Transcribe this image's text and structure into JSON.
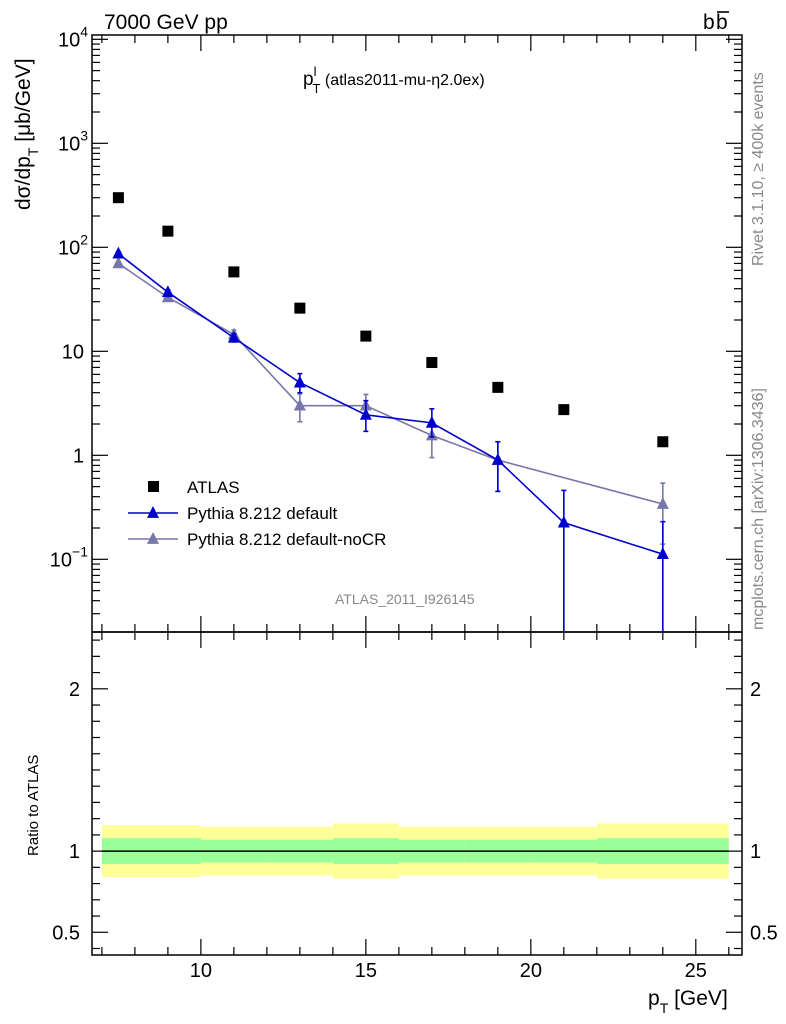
{
  "header": {
    "left": "7000 GeV pp",
    "right_b": "b",
    "right_bbar": "b"
  },
  "side_labels": {
    "rivet": "Rivet 3.1.10, ≥ 400k events",
    "mcplots": "mcplots.cern.ch [arXiv:1306.3436]"
  },
  "watermark": "ATLAS_2011_I926145",
  "plot_title": {
    "main": "p",
    "sup": "l",
    "sub": "T",
    "rest": " (atlas2011-mu-η2.0ex)"
  },
  "axes": {
    "ylabel": {
      "main": "dσ/dp",
      "sub": "T",
      "rest": " [μb/GeV]"
    },
    "xlabel": {
      "main": "p",
      "sub": "T",
      "rest": " [GeV]"
    },
    "ratio_ylabel": "Ratio to ATLAS"
  },
  "chart_data": [
    {
      "type": "scatter",
      "panel": "main",
      "yscale": "log",
      "xlim": [
        6.7,
        26.4
      ],
      "ylim": [
        0.02,
        11000
      ],
      "x_ticks": [
        10,
        15,
        20,
        25
      ],
      "y_ticks": [
        {
          "value": 0.1,
          "label": "10",
          "exp": "−1"
        },
        {
          "value": 1,
          "label": "1",
          "exp": ""
        },
        {
          "value": 10,
          "label": "10",
          "exp": ""
        },
        {
          "value": 100,
          "label": "10",
          "exp": "2"
        },
        {
          "value": 1000,
          "label": "10",
          "exp": "3"
        },
        {
          "value": 10000,
          "label": "10",
          "exp": "4"
        }
      ],
      "legend_position": "lower-left",
      "series": [
        {
          "name": "ATLAS",
          "color": "#000000",
          "marker": "square",
          "x": [
            7.5,
            9,
            11,
            13,
            15,
            17,
            19,
            21,
            24
          ],
          "y": [
            300,
            143,
            58,
            26,
            14,
            7.8,
            4.5,
            2.75,
            1.35
          ]
        },
        {
          "name": "Pythia 8.212 default",
          "color": "#0000cc",
          "marker": "triangle",
          "x": [
            7.5,
            9,
            11,
            13,
            15,
            17,
            19,
            21,
            24
          ],
          "y": [
            87,
            37,
            13.5,
            5,
            2.45,
            2.05,
            0.9,
            0.225,
            0.112
          ],
          "err_lo": [
            4,
            2,
            1.2,
            1,
            0.75,
            0.55,
            0.45,
            0.215,
            0.108
          ],
          "err_hi": [
            4,
            2,
            1.2,
            1.1,
            0.9,
            0.75,
            0.45,
            0.235,
            0.118
          ]
        },
        {
          "name": "Pythia 8.212 default-noCR",
          "color": "#7777aa",
          "marker": "triangle",
          "x": [
            7.5,
            9,
            11,
            13,
            15,
            17,
            19,
            24
          ],
          "y": [
            70,
            33,
            14.5,
            3,
            3,
            1.55,
            0.9,
            0.34
          ],
          "err_lo": [
            3,
            1.5,
            1.5,
            0.9,
            0.75,
            0.6,
            0.45,
            0.2
          ],
          "err_hi": [
            3,
            1.5,
            1.5,
            0.9,
            0.85,
            0.6,
            0.45,
            0.2
          ]
        }
      ]
    },
    {
      "type": "area",
      "panel": "ratio",
      "xlim": [
        6.7,
        26.4
      ],
      "ylim": [
        0.36,
        2.35
      ],
      "x_ticks": [
        10,
        15,
        20,
        25
      ],
      "y_ticks": [
        0.5,
        1,
        2
      ],
      "reference_line": 1,
      "bands": {
        "bins": [
          [
            7,
            10
          ],
          [
            10,
            12
          ],
          [
            12,
            14
          ],
          [
            14,
            16
          ],
          [
            16,
            18
          ],
          [
            18,
            20
          ],
          [
            20,
            22
          ],
          [
            22,
            26
          ]
        ],
        "inner": [
          0.08,
          0.07,
          0.07,
          0.08,
          0.07,
          0.07,
          0.07,
          0.08
        ],
        "outer": [
          0.16,
          0.15,
          0.15,
          0.17,
          0.15,
          0.15,
          0.15,
          0.17
        ],
        "inner_color": "#99ff99",
        "outer_color": "#ffff99"
      }
    }
  ]
}
